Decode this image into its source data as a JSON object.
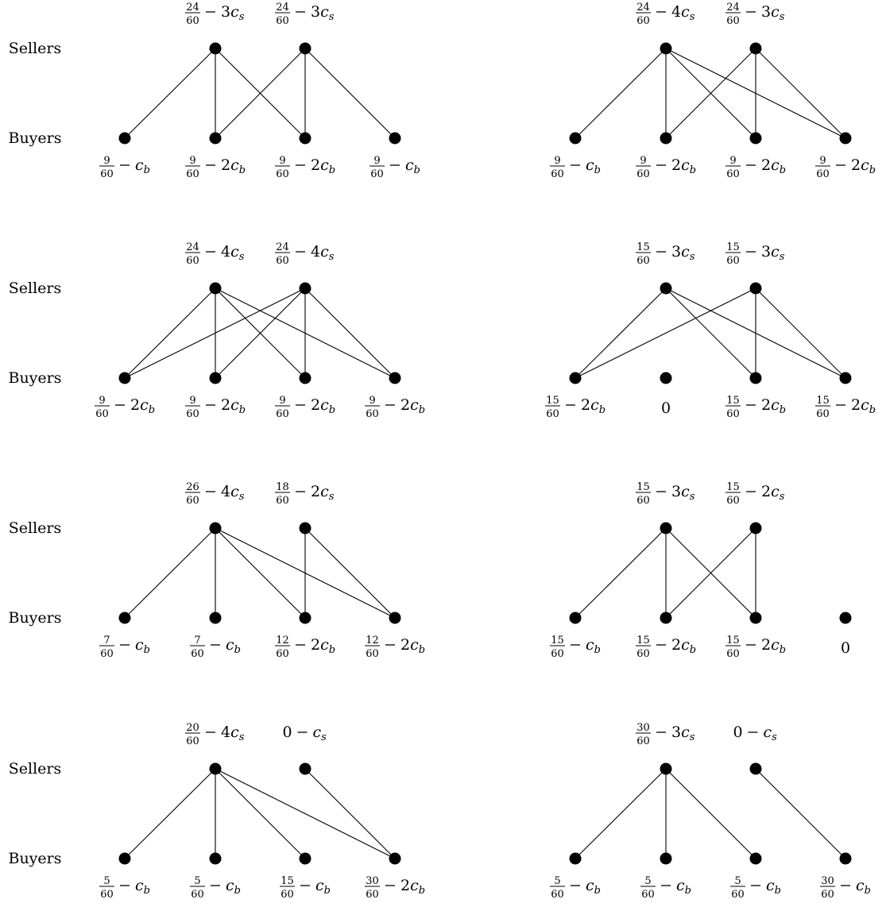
{
  "row_labels": {
    "sellers": "Sellers",
    "buyers": "Buyers"
  },
  "diagrams": [
    {
      "sellers": [
        {
          "num": "24",
          "den": "60",
          "coef": "3",
          "var": "c",
          "sub": "s"
        },
        {
          "num": "24",
          "den": "60",
          "coef": "3",
          "var": "c",
          "sub": "s"
        }
      ],
      "buyers": [
        {
          "num": "9",
          "den": "60",
          "coef": "",
          "var": "c",
          "sub": "b"
        },
        {
          "num": "9",
          "den": "60",
          "coef": "2",
          "var": "c",
          "sub": "b"
        },
        {
          "num": "9",
          "den": "60",
          "coef": "2",
          "var": "c",
          "sub": "b"
        },
        {
          "num": "9",
          "den": "60",
          "coef": "",
          "var": "c",
          "sub": "b"
        }
      ],
      "edges": [
        [
          0,
          0
        ],
        [
          0,
          1
        ],
        [
          0,
          2
        ],
        [
          1,
          1
        ],
        [
          1,
          2
        ],
        [
          1,
          3
        ]
      ]
    },
    {
      "sellers": [
        {
          "num": "24",
          "den": "60",
          "coef": "4",
          "var": "c",
          "sub": "s"
        },
        {
          "num": "24",
          "den": "60",
          "coef": "3",
          "var": "c",
          "sub": "s"
        }
      ],
      "buyers": [
        {
          "num": "9",
          "den": "60",
          "coef": "",
          "var": "c",
          "sub": "b"
        },
        {
          "num": "9",
          "den": "60",
          "coef": "2",
          "var": "c",
          "sub": "b"
        },
        {
          "num": "9",
          "den": "60",
          "coef": "2",
          "var": "c",
          "sub": "b"
        },
        {
          "num": "9",
          "den": "60",
          "coef": "2",
          "var": "c",
          "sub": "b"
        }
      ],
      "edges": [
        [
          0,
          0
        ],
        [
          0,
          1
        ],
        [
          0,
          2
        ],
        [
          0,
          3
        ],
        [
          1,
          1
        ],
        [
          1,
          2
        ],
        [
          1,
          3
        ]
      ]
    },
    {
      "sellers": [
        {
          "num": "24",
          "den": "60",
          "coef": "4",
          "var": "c",
          "sub": "s"
        },
        {
          "num": "24",
          "den": "60",
          "coef": "4",
          "var": "c",
          "sub": "s"
        }
      ],
      "buyers": [
        {
          "num": "9",
          "den": "60",
          "coef": "2",
          "var": "c",
          "sub": "b"
        },
        {
          "num": "9",
          "den": "60",
          "coef": "2",
          "var": "c",
          "sub": "b"
        },
        {
          "num": "9",
          "den": "60",
          "coef": "2",
          "var": "c",
          "sub": "b"
        },
        {
          "num": "9",
          "den": "60",
          "coef": "2",
          "var": "c",
          "sub": "b"
        }
      ],
      "edges": [
        [
          0,
          0
        ],
        [
          0,
          1
        ],
        [
          0,
          2
        ],
        [
          0,
          3
        ],
        [
          1,
          0
        ],
        [
          1,
          1
        ],
        [
          1,
          2
        ],
        [
          1,
          3
        ]
      ]
    },
    {
      "sellers": [
        {
          "num": "15",
          "den": "60",
          "coef": "3",
          "var": "c",
          "sub": "s"
        },
        {
          "num": "15",
          "den": "60",
          "coef": "3",
          "var": "c",
          "sub": "s"
        }
      ],
      "buyers": [
        {
          "num": "15",
          "den": "60",
          "coef": "2",
          "var": "c",
          "sub": "b"
        },
        {
          "plain": "0"
        },
        {
          "num": "15",
          "den": "60",
          "coef": "2",
          "var": "c",
          "sub": "b"
        },
        {
          "num": "15",
          "den": "60",
          "coef": "2",
          "var": "c",
          "sub": "b"
        }
      ],
      "edges": [
        [
          0,
          0
        ],
        [
          0,
          2
        ],
        [
          0,
          3
        ],
        [
          1,
          0
        ],
        [
          1,
          2
        ],
        [
          1,
          3
        ]
      ]
    },
    {
      "sellers": [
        {
          "num": "26",
          "den": "60",
          "coef": "4",
          "var": "c",
          "sub": "s"
        },
        {
          "num": "18",
          "den": "60",
          "coef": "2",
          "var": "c",
          "sub": "s"
        }
      ],
      "buyers": [
        {
          "num": "7",
          "den": "60",
          "coef": "",
          "var": "c",
          "sub": "b"
        },
        {
          "num": "7",
          "den": "60",
          "coef": "",
          "var": "c",
          "sub": "b"
        },
        {
          "num": "12",
          "den": "60",
          "coef": "2",
          "var": "c",
          "sub": "b"
        },
        {
          "num": "12",
          "den": "60",
          "coef": "2",
          "var": "c",
          "sub": "b"
        }
      ],
      "edges": [
        [
          0,
          0
        ],
        [
          0,
          1
        ],
        [
          0,
          2
        ],
        [
          0,
          3
        ],
        [
          1,
          2
        ],
        [
          1,
          3
        ]
      ]
    },
    {
      "sellers": [
        {
          "num": "15",
          "den": "60",
          "coef": "3",
          "var": "c",
          "sub": "s"
        },
        {
          "num": "15",
          "den": "60",
          "coef": "2",
          "var": "c",
          "sub": "s"
        }
      ],
      "buyers": [
        {
          "num": "15",
          "den": "60",
          "coef": "",
          "var": "c",
          "sub": "b"
        },
        {
          "num": "15",
          "den": "60",
          "coef": "2",
          "var": "c",
          "sub": "b"
        },
        {
          "num": "15",
          "den": "60",
          "coef": "2",
          "var": "c",
          "sub": "b"
        },
        {
          "plain": "0"
        }
      ],
      "edges": [
        [
          0,
          0
        ],
        [
          0,
          1
        ],
        [
          0,
          2
        ],
        [
          1,
          1
        ],
        [
          1,
          2
        ]
      ]
    },
    {
      "sellers": [
        {
          "num": "20",
          "den": "60",
          "coef": "4",
          "var": "c",
          "sub": "s"
        },
        {
          "lead": "0",
          "coef": "",
          "var": "c",
          "sub": "s"
        }
      ],
      "buyers": [
        {
          "num": "5",
          "den": "60",
          "coef": "",
          "var": "c",
          "sub": "b"
        },
        {
          "num": "5",
          "den": "60",
          "coef": "",
          "var": "c",
          "sub": "b"
        },
        {
          "num": "15",
          "den": "60",
          "coef": "",
          "var": "c",
          "sub": "b"
        },
        {
          "num": "30",
          "den": "60",
          "coef": "2",
          "var": "c",
          "sub": "b"
        }
      ],
      "edges": [
        [
          0,
          0
        ],
        [
          0,
          1
        ],
        [
          0,
          2
        ],
        [
          0,
          3
        ],
        [
          1,
          3
        ]
      ]
    },
    {
      "sellers": [
        {
          "num": "30",
          "den": "60",
          "coef": "3",
          "var": "c",
          "sub": "s"
        },
        {
          "lead": "0",
          "coef": "",
          "var": "c",
          "sub": "s"
        }
      ],
      "buyers": [
        {
          "num": "5",
          "den": "60",
          "coef": "",
          "var": "c",
          "sub": "b"
        },
        {
          "num": "5",
          "den": "60",
          "coef": "",
          "var": "c",
          "sub": "b"
        },
        {
          "num": "5",
          "den": "60",
          "coef": "",
          "var": "c",
          "sub": "b"
        },
        {
          "num": "30",
          "den": "60",
          "coef": "",
          "var": "c",
          "sub": "b"
        }
      ],
      "edges": [
        [
          0,
          0
        ],
        [
          0,
          1
        ],
        [
          0,
          2
        ],
        [
          1,
          3
        ]
      ]
    }
  ]
}
